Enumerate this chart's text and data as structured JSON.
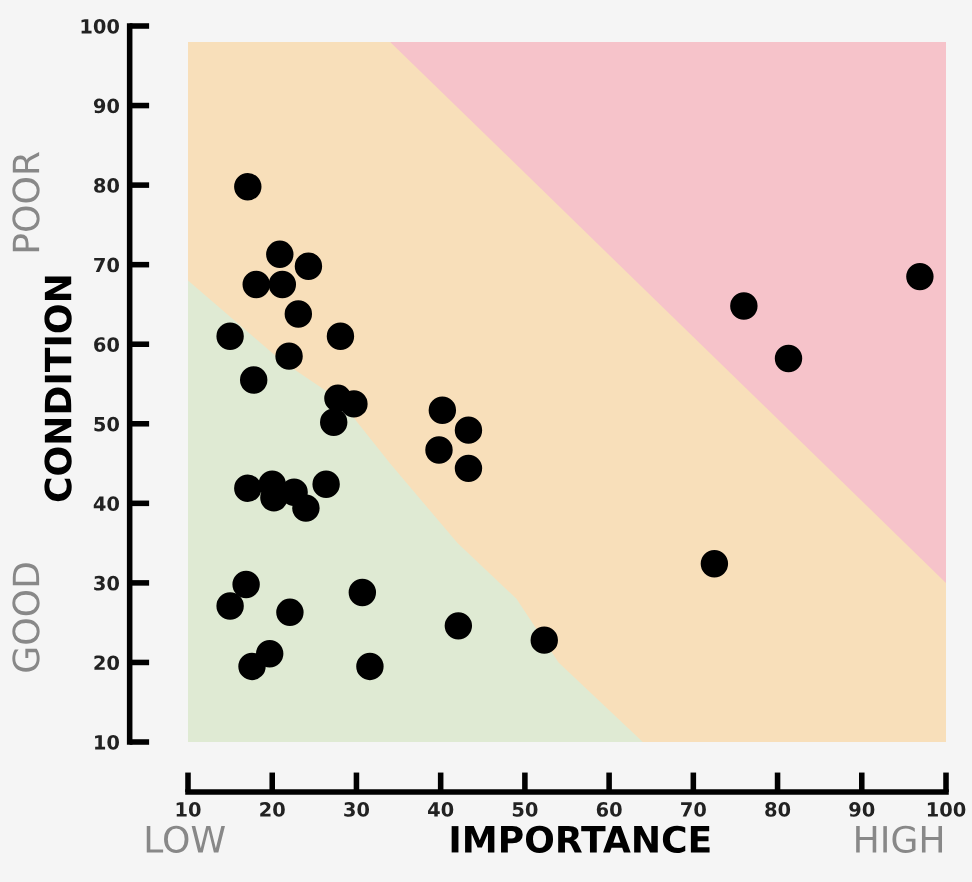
{
  "chart_data": {
    "type": "scatter",
    "xlabel": "IMPORTANCE",
    "ylabel": "CONDITION",
    "annotations": [
      "LOW",
      "HIGH",
      "GOOD",
      "POOR"
    ],
    "x": [
      17.1,
      20.9,
      24.3,
      18.1,
      21.2,
      23.1,
      15.0,
      28.1,
      22.0,
      17.8,
      27.8,
      29.7,
      27.3,
      40.2,
      43.3,
      39.8,
      43.3,
      20.0,
      17.1,
      26.4,
      20.2,
      22.6,
      24.0,
      16.9,
      15.0,
      30.7,
      22.1,
      19.7,
      17.6,
      31.6,
      42.1,
      52.3,
      72.5,
      76.0,
      81.3,
      96.9
    ],
    "values": [
      79.8,
      71.3,
      69.8,
      67.5,
      67.5,
      63.8,
      61.0,
      61.0,
      58.5,
      55.5,
      53.2,
      52.5,
      50.2,
      51.7,
      49.2,
      46.7,
      44.4,
      42.4,
      41.9,
      42.4,
      40.7,
      41.4,
      39.4,
      29.8,
      27.1,
      28.8,
      26.3,
      21.1,
      19.5,
      19.5,
      24.6,
      22.8,
      32.4,
      64.8,
      58.2,
      68.5
    ],
    "color": "#000000",
    "marker": "circle",
    "series": [
      {
        "type": "area",
        "marker": "none",
        "color": "#f6c3ca",
        "x": [
          34,
          100
        ],
        "values": [
          98,
          98
        ]
      },
      {
        "type": "area",
        "marker": "none",
        "color": "#f8dfba",
        "x": [
          10,
          34,
          100
        ],
        "values": [
          98,
          98,
          30
        ]
      },
      {
        "type": "area",
        "marker": "none",
        "color": "#dfead3",
        "x": [
          10,
          21,
          28,
          34,
          42,
          49,
          54,
          64
        ],
        "values": [
          68,
          58,
          53,
          45,
          35,
          28,
          20,
          10
        ]
      }
    ],
    "grid": false,
    "xlim": [
      10,
      100
    ],
    "xticks": [
      10,
      20,
      30,
      40,
      50,
      60,
      70,
      80,
      90,
      100
    ],
    "ylim": [
      10,
      100
    ],
    "yticks": [
      10,
      20,
      30,
      40,
      50,
      60,
      70,
      80,
      90,
      100
    ]
  }
}
